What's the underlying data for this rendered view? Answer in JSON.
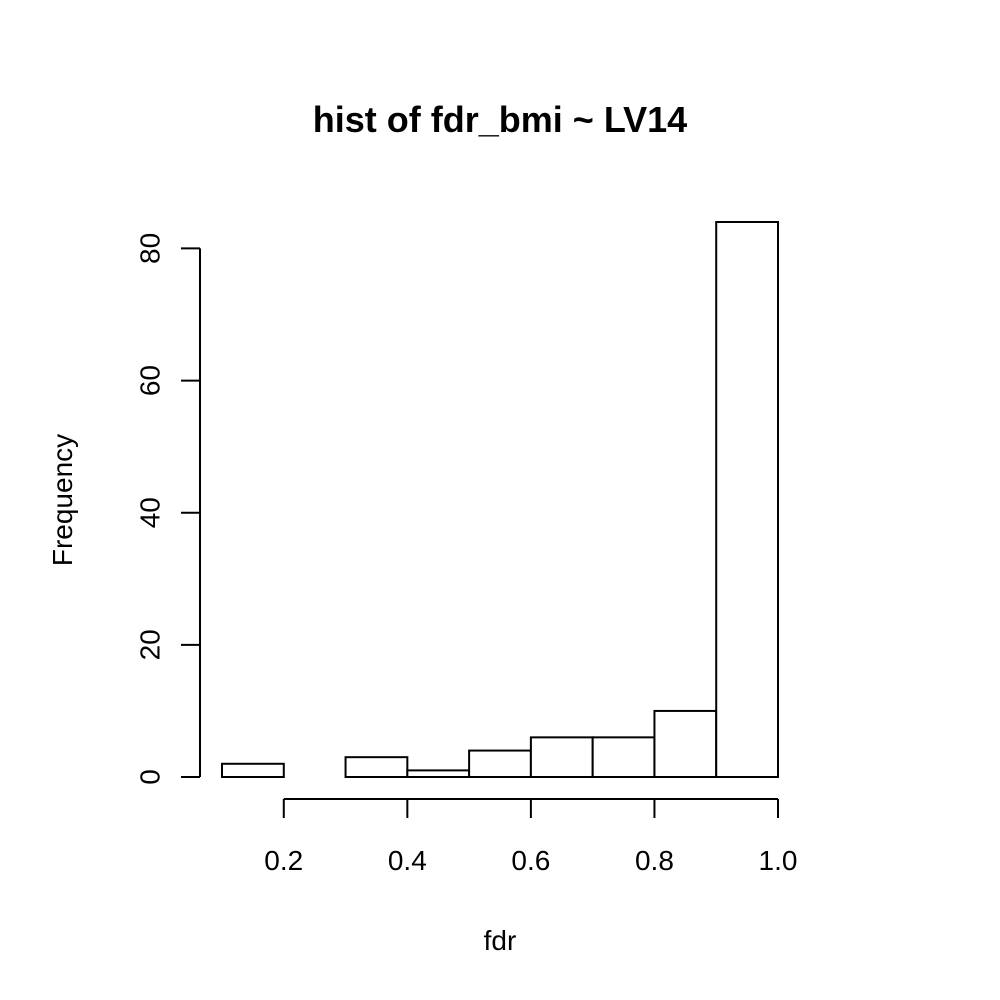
{
  "chart_data": {
    "type": "bar",
    "title": "hist of fdr_bmi ~ LV14",
    "xlabel": "fdr",
    "ylabel": "Frequency",
    "bin_edges": [
      0.1,
      0.2,
      0.3,
      0.4,
      0.5,
      0.6,
      0.7,
      0.8,
      0.9,
      1.0
    ],
    "values": [
      2,
      0,
      3,
      1,
      4,
      6,
      6,
      10,
      84
    ],
    "xlim": [
      0.1,
      1.0
    ],
    "ylim": [
      0,
      84
    ],
    "x_ticks": [
      0.2,
      0.4,
      0.6,
      0.8,
      1.0
    ],
    "x_tick_labels": [
      "0.2",
      "0.4",
      "0.6",
      "0.8",
      "1.0"
    ],
    "y_ticks": [
      0,
      20,
      40,
      60,
      80
    ],
    "y_tick_labels": [
      "0",
      "20",
      "40",
      "60",
      "80"
    ],
    "grid": false,
    "legend": "none",
    "bar_fill": "#ffffff",
    "bar_stroke": "#000000"
  }
}
